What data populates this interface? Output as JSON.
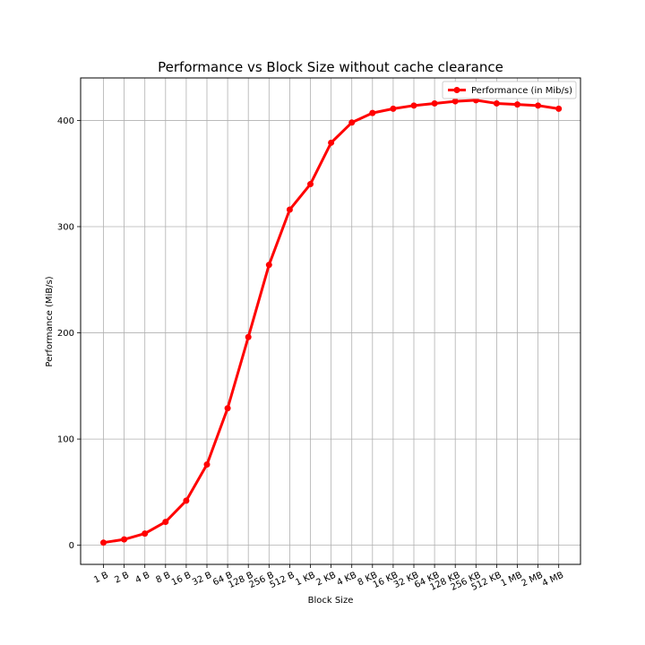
{
  "chart_data": {
    "type": "line",
    "title": "Performance vs Block Size without cache clearance",
    "xlabel": "Block Size",
    "ylabel": "Performance (MiB/s)",
    "categories": [
      "1 B",
      "2 B",
      "4 B",
      "8 B",
      "16 B",
      "32 B",
      "64 B",
      "128 B",
      "256 B",
      "512 B",
      "1 KB",
      "2 KB",
      "4 KB",
      "8 KB",
      "16 KB",
      "32 KB",
      "64 KB",
      "128 KB",
      "256 KB",
      "512 KB",
      "1 MB",
      "2 MB",
      "4 MB"
    ],
    "series": [
      {
        "name": "Performance (in Mib/s)",
        "color": "#ff0000",
        "values": [
          2.5,
          5.5,
          11,
          22,
          42,
          76,
          129,
          196,
          264,
          316,
          340,
          379,
          398,
          407,
          411,
          414,
          416,
          418,
          419,
          416,
          415,
          414,
          411
        ]
      }
    ],
    "ylim": [
      -18,
      440
    ],
    "yticks": [
      0,
      100,
      200,
      300,
      400
    ],
    "grid": true,
    "legend_position": "top-right",
    "xtick_rotation": -25
  }
}
